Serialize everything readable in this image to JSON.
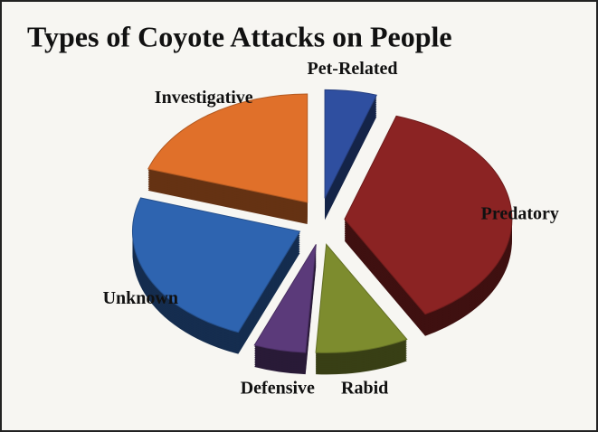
{
  "chart_data": {
    "type": "pie",
    "title": "Types of Coyote Attacks on People",
    "categories": [
      "Pet-Related",
      "Predatory",
      "Rabid",
      "Defensive",
      "Unknown",
      "Investigative"
    ],
    "values": [
      5,
      37,
      9,
      5,
      24,
      20
    ],
    "colors": [
      "#2f4fa0",
      "#8b2323",
      "#7d8c2e",
      "#5b3a7a",
      "#2e64b0",
      "#e0702a"
    ]
  }
}
